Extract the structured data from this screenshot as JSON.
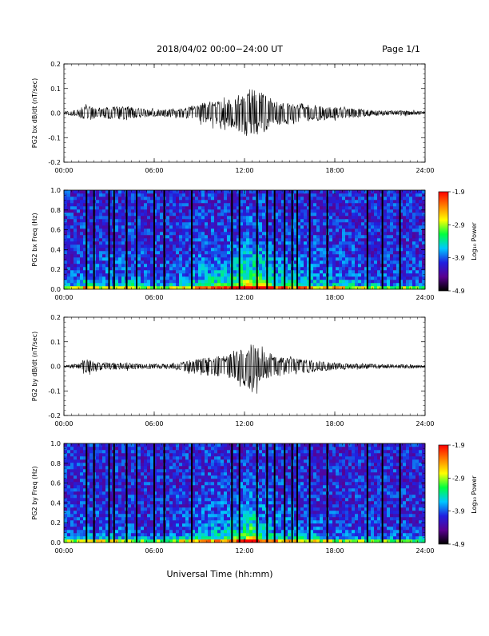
{
  "header": {
    "title": "2018/04/02  00:00−24:00 UT",
    "page": "Page 1/1"
  },
  "footer": {
    "xlabel": "Universal Time (hh:mm)"
  },
  "x_ticks": [
    "00:00",
    "06:00",
    "12:00",
    "18:00",
    "24:00"
  ],
  "colorbar": {
    "label": "Log₁₀ Power",
    "ticks": [
      "-1.9",
      "-2.9",
      "-3.9",
      "-4.9"
    ],
    "range": [
      -4.9,
      -1.9
    ],
    "colors": [
      "#000000",
      "#5a0090",
      "#2020e0",
      "#00c8ff",
      "#00ff40",
      "#ffff00",
      "#ff8000",
      "#ff0000"
    ]
  },
  "chart_data": [
    {
      "type": "line",
      "ylabel": "PG2 bx dB/dt (nT/sec)",
      "xlim": [
        "00:00",
        "24:00"
      ],
      "ylim": [
        -0.2,
        0.2
      ],
      "yticks": [
        "0.2",
        "0.1",
        "0.0",
        "-0.1",
        "-0.2"
      ],
      "series": [
        {
          "x": [
            "00:00",
            "01:00",
            "01:30",
            "02:00",
            "03:00",
            "04:00",
            "05:00",
            "06:00",
            "07:00",
            "08:00",
            "09:00",
            "10:00",
            "11:00",
            "11:30",
            "12:00",
            "12:30",
            "13:00",
            "13:30",
            "14:00",
            "15:00",
            "16:00",
            "17:00",
            "18:00",
            "19:00",
            "20:00",
            "21:00",
            "22:00",
            "23:00",
            "24:00"
          ],
          "values": [
            0.005,
            0.015,
            0.04,
            0.02,
            0.025,
            0.03,
            0.02,
            0.015,
            0.015,
            0.02,
            0.04,
            0.05,
            0.06,
            0.07,
            0.09,
            0.1,
            0.09,
            0.07,
            0.05,
            0.045,
            0.04,
            0.03,
            0.025,
            0.02,
            0.015,
            0.01,
            0.01,
            0.01,
            0.005
          ]
        }
      ]
    },
    {
      "type": "heatmap",
      "ylabel": "PG2 bx Freq (Hz)",
      "xlim": [
        "00:00",
        "24:00"
      ],
      "ylim": [
        0.0,
        1.0
      ],
      "yticks": [
        "1.0",
        "0.8",
        "0.6",
        "0.4",
        "0.2",
        "0.0"
      ],
      "zlabel": "Log₁₀ Power",
      "zlim": [
        -4.9,
        -1.9
      ],
      "gap_times": [
        "01:30",
        "02:00",
        "03:00",
        "03:20",
        "04:10",
        "04:50",
        "06:00",
        "06:40",
        "08:30",
        "11:10",
        "11:40",
        "12:50",
        "13:30",
        "14:00",
        "14:40",
        "15:10",
        "15:30",
        "16:20",
        "17:30",
        "20:10",
        "21:10",
        "22:20"
      ]
    },
    {
      "type": "line",
      "ylabel": "PG2 by dB/dt (nT/sec)",
      "xlim": [
        "00:00",
        "24:00"
      ],
      "ylim": [
        -0.2,
        0.2
      ],
      "yticks": [
        "0.2",
        "0.1",
        "0.0",
        "-0.1",
        "-0.2"
      ],
      "series": [
        {
          "x": [
            "00:00",
            "01:00",
            "01:30",
            "02:00",
            "03:00",
            "04:00",
            "05:00",
            "06:00",
            "07:00",
            "08:00",
            "09:00",
            "10:00",
            "11:00",
            "11:30",
            "12:00",
            "12:30",
            "13:00",
            "13:30",
            "14:00",
            "15:00",
            "16:00",
            "17:00",
            "18:00",
            "19:00",
            "20:00",
            "21:00",
            "22:00",
            "23:00",
            "24:00"
          ],
          "values": [
            0.005,
            0.01,
            0.03,
            0.02,
            0.015,
            0.015,
            0.01,
            0.01,
            0.01,
            0.02,
            0.035,
            0.04,
            0.05,
            0.06,
            0.08,
            0.11,
            0.07,
            0.05,
            0.04,
            0.035,
            0.03,
            0.02,
            0.015,
            0.01,
            0.01,
            0.008,
            0.008,
            0.008,
            0.005
          ]
        }
      ]
    },
    {
      "type": "heatmap",
      "ylabel": "PG2 by Freq (Hz)",
      "xlim": [
        "00:00",
        "24:00"
      ],
      "ylim": [
        0.0,
        1.0
      ],
      "yticks": [
        "1.0",
        "0.8",
        "0.6",
        "0.4",
        "0.2",
        "0.0"
      ],
      "zlabel": "Log₁₀ Power",
      "zlim": [
        -4.9,
        -1.9
      ],
      "gap_times": [
        "01:30",
        "02:00",
        "03:00",
        "03:20",
        "04:10",
        "04:50",
        "06:00",
        "06:40",
        "08:30",
        "11:10",
        "11:40",
        "12:50",
        "13:30",
        "14:00",
        "14:40",
        "15:10",
        "15:30",
        "16:20",
        "17:30",
        "20:10",
        "21:10",
        "22:20"
      ]
    }
  ]
}
